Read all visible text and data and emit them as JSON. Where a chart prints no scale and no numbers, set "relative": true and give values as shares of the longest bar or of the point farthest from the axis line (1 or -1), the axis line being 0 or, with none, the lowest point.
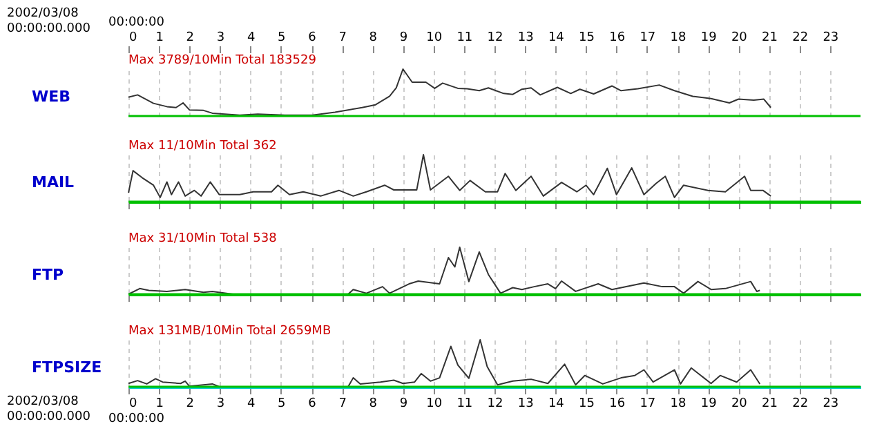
{
  "chart_data": [
    {
      "type": "line",
      "relative": true,
      "ylabel": "WEB",
      "xlabel": "00:00:00",
      "xlim": [
        0,
        24
      ],
      "xticks": [
        0,
        1,
        2,
        3,
        4,
        5,
        6,
        7,
        8,
        9,
        10,
        11,
        12,
        13,
        14,
        15,
        16,
        17,
        18,
        19,
        20,
        21,
        22,
        23
      ],
      "grid": "x",
      "annotations": [
        "Max  3789/10Min  Total 183529",
        "2002/03/08\n00:00:00.000"
      ],
      "series": [
        {
          "color": "#333333",
          "x": [
            0,
            0.3,
            0.82,
            1.26,
            1.56,
            1.79,
            2.0,
            2.46,
            2.75,
            3.65,
            4.24,
            5.13,
            6.03,
            6.77,
            7.2,
            7.66,
            8.1,
            8.56,
            8.78,
            9.0,
            9.3,
            9.75,
            10.04,
            10.3,
            10.8,
            11.1,
            11.5,
            11.8,
            12.3,
            12.6,
            12.9,
            13.2,
            13.5,
            14.06,
            14.5,
            14.8,
            15.25,
            15.85,
            16.15,
            16.7,
            17.4,
            17.9,
            18.5,
            19.1,
            19.7,
            20.0,
            20.5,
            20.83,
            21.06
          ],
          "values": [
            0.4,
            0.45,
            0.27,
            0.2,
            0.18,
            0.28,
            0.13,
            0.12,
            0.06,
            0.02,
            0.04,
            0.02,
            0.02,
            0.08,
            0.13,
            0.18,
            0.24,
            0.42,
            0.6,
            1.0,
            0.72,
            0.72,
            0.59,
            0.7,
            0.59,
            0.58,
            0.54,
            0.6,
            0.48,
            0.46,
            0.57,
            0.6,
            0.45,
            0.61,
            0.48,
            0.57,
            0.47,
            0.64,
            0.54,
            0.58,
            0.66,
            0.54,
            0.42,
            0.37,
            0.28,
            0.36,
            0.34,
            0.36,
            0.18
          ]
        }
      ]
    },
    {
      "type": "line",
      "relative": true,
      "ylabel": "MAIL",
      "xlim": [
        0,
        24
      ],
      "xticks": [
        0,
        1,
        2,
        3,
        4,
        5,
        6,
        7,
        8,
        9,
        10,
        11,
        12,
        13,
        14,
        15,
        16,
        17,
        18,
        19,
        20,
        21,
        22,
        23
      ],
      "grid": "x",
      "tick_labels": false,
      "annotations": [
        "Max    11/10Min  Total    362"
      ],
      "series": [
        {
          "color": "#333333",
          "x": [
            0,
            0.15,
            0.45,
            0.82,
            1.04,
            1.26,
            1.41,
            1.64,
            1.86,
            2.16,
            2.38,
            2.68,
            2.98,
            3.65,
            4.09,
            4.69,
            4.9,
            5.28,
            5.73,
            6.3,
            6.9,
            7.37,
            7.8,
            8.4,
            8.7,
            9.45,
            9.67,
            9.9,
            10.49,
            10.86,
            11.2,
            11.7,
            12.1,
            12.35,
            12.7,
            13.2,
            13.6,
            14.2,
            14.7,
            15.0,
            15.25,
            15.7,
            16.0,
            16.5,
            16.9,
            17.3,
            17.6,
            17.9,
            18.2,
            19.0,
            19.57,
            20.2,
            20.4,
            20.8,
            21.06
          ],
          "values": [
            0.19,
            0.66,
            0.51,
            0.35,
            0.09,
            0.42,
            0.15,
            0.42,
            0.12,
            0.24,
            0.12,
            0.42,
            0.15,
            0.15,
            0.21,
            0.21,
            0.35,
            0.15,
            0.21,
            0.12,
            0.24,
            0.12,
            0.21,
            0.35,
            0.25,
            0.25,
            1.0,
            0.25,
            0.54,
            0.24,
            0.45,
            0.21,
            0.21,
            0.6,
            0.24,
            0.54,
            0.12,
            0.41,
            0.21,
            0.35,
            0.15,
            0.71,
            0.15,
            0.72,
            0.15,
            0.39,
            0.54,
            0.09,
            0.35,
            0.24,
            0.21,
            0.54,
            0.24,
            0.24,
            0.12
          ]
        }
      ]
    },
    {
      "type": "line",
      "relative": true,
      "ylabel": "FTP",
      "xlim": [
        0,
        24
      ],
      "xticks": [
        0,
        1,
        2,
        3,
        4,
        5,
        6,
        7,
        8,
        9,
        10,
        11,
        12,
        13,
        14,
        15,
        16,
        17,
        18,
        19,
        20,
        21,
        22,
        23
      ],
      "grid": "x",
      "tick_labels": false,
      "annotations": [
        "Max    31/10Min  Total    538"
      ],
      "series": [
        {
          "color": "#333333",
          "x": [
            0,
            0.37,
            0.67,
            1.26,
            1.86,
            2.46,
            2.75,
            3.42,
            7.2,
            7.37,
            7.8,
            8.33,
            8.56,
            9.2,
            9.5,
            10.2,
            10.49,
            10.7,
            10.86,
            11.16,
            11.5,
            11.8,
            12.2,
            12.6,
            12.9,
            13.3,
            13.75,
            14.0,
            14.2,
            14.66,
            15.4,
            15.85,
            16.9,
            17.5,
            17.9,
            18.2,
            18.67,
            19.1,
            19.57,
            20.4,
            20.6,
            20.7
          ],
          "values": [
            0,
            0.12,
            0.08,
            0.06,
            0.1,
            0.04,
            0.06,
            0,
            0,
            0.1,
            0.02,
            0.16,
            0.02,
            0.22,
            0.28,
            0.22,
            0.78,
            0.58,
            1.0,
            0.27,
            0.9,
            0.42,
            0.02,
            0.14,
            0.1,
            0.16,
            0.22,
            0.12,
            0.28,
            0.06,
            0.22,
            0.1,
            0.24,
            0.16,
            0.16,
            0.02,
            0.27,
            0.1,
            0.12,
            0.27,
            0.06,
            0.08
          ]
        }
      ]
    },
    {
      "type": "line",
      "relative": true,
      "ylabel": "FTPSIZE",
      "xlabel": "00:00:00",
      "xlim": [
        0,
        24
      ],
      "xticks": [
        0,
        1,
        2,
        3,
        4,
        5,
        6,
        7,
        8,
        9,
        10,
        11,
        12,
        13,
        14,
        15,
        16,
        17,
        18,
        19,
        20,
        21,
        22,
        23
      ],
      "grid": "x",
      "annotations": [
        "Max 131MB/10Min  Total   2659MB",
        "2002/03/08\n00:00:00.000"
      ],
      "series": [
        {
          "color": "#333333",
          "x": [
            0,
            0.3,
            0.6,
            0.89,
            1.12,
            1.71,
            1.86,
            2.0,
            2.75,
            2.98,
            7.2,
            7.37,
            7.6,
            8.26,
            8.7,
            9.0,
            9.38,
            9.6,
            9.9,
            10.2,
            10.57,
            10.8,
            11.16,
            11.53,
            11.76,
            12.1,
            12.6,
            13.2,
            13.75,
            14.3,
            14.66,
            14.96,
            15.55,
            16.15,
            16.6,
            16.9,
            17.2,
            17.9,
            18.1,
            18.45,
            19.1,
            19.4,
            19.94,
            20.4,
            20.7
          ],
          "values": [
            0.07,
            0.13,
            0.06,
            0.17,
            0.1,
            0.07,
            0.12,
            0.01,
            0.06,
            0,
            0,
            0.19,
            0.06,
            0.1,
            0.14,
            0.07,
            0.1,
            0.28,
            0.12,
            0.19,
            0.86,
            0.46,
            0.18,
            1.0,
            0.43,
            0.04,
            0.12,
            0.16,
            0.07,
            0.48,
            0.04,
            0.24,
            0.06,
            0.19,
            0.24,
            0.36,
            0.1,
            0.36,
            0.06,
            0.4,
            0.07,
            0.24,
            0.1,
            0.36,
            0.06
          ]
        }
      ]
    }
  ]
}
